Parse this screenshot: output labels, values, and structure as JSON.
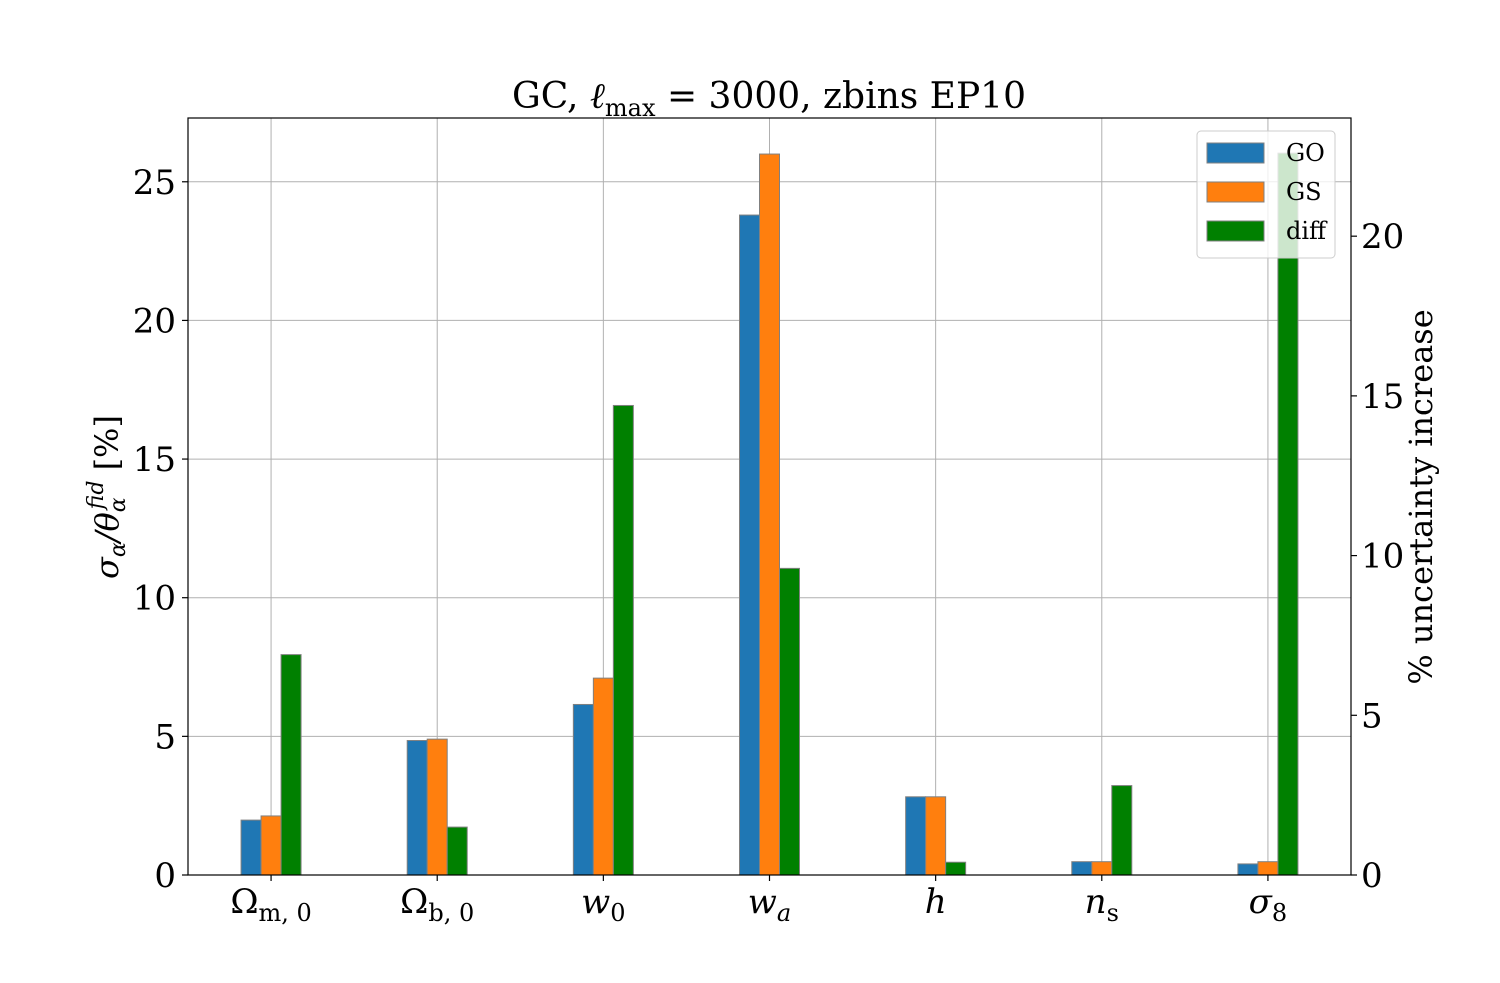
{
  "chart_data": {
    "type": "bar",
    "title": "GC, ℓmax = 3000, zbins EP10",
    "title_parts": {
      "prefix": "GC, ",
      "ell": "ℓ",
      "sub": "max",
      "suffix": " = 3000, zbins EP10"
    },
    "ylabel": "σα/θαfid [%]",
    "ylabel_parts": {
      "sigma": "σ",
      "sub1": "α",
      "slash": "/θ",
      "sub2": "α",
      "sup": "fid",
      "unit": " [%]"
    },
    "ylabel_right": "% uncertainty increase",
    "categories": [
      {
        "main": "Ω",
        "sub": "m, 0"
      },
      {
        "main": "Ω",
        "sub": "b, 0"
      },
      {
        "main": "w",
        "sub": "0"
      },
      {
        "main": "w",
        "sub": "a"
      },
      {
        "main": "h",
        "sub": ""
      },
      {
        "main": "n",
        "sub": "s"
      },
      {
        "main": "σ",
        "sub": "8"
      }
    ],
    "series": [
      {
        "name": "GO",
        "axis": "left",
        "color": "#1f77b4",
        "values": [
          1.98,
          4.85,
          6.15,
          23.8,
          2.82,
          0.48,
          0.4
        ]
      },
      {
        "name": "GS",
        "axis": "left",
        "color": "#ff7f0e",
        "values": [
          2.13,
          4.9,
          7.1,
          26.0,
          2.82,
          0.48,
          0.48
        ]
      },
      {
        "name": "diff",
        "axis": "right",
        "color": "#008000",
        "values": [
          6.9,
          1.5,
          14.7,
          9.6,
          0.4,
          2.8,
          22.6
        ]
      }
    ],
    "ylim": [
      0,
      27.3
    ],
    "ylim_right": [
      0,
      23.7
    ],
    "yticks": [
      "0",
      "5",
      "10",
      "15",
      "20",
      "25"
    ],
    "yticks_right": [
      "0",
      "5",
      "10",
      "15",
      "20"
    ],
    "grid": true,
    "legend": "top-right"
  }
}
